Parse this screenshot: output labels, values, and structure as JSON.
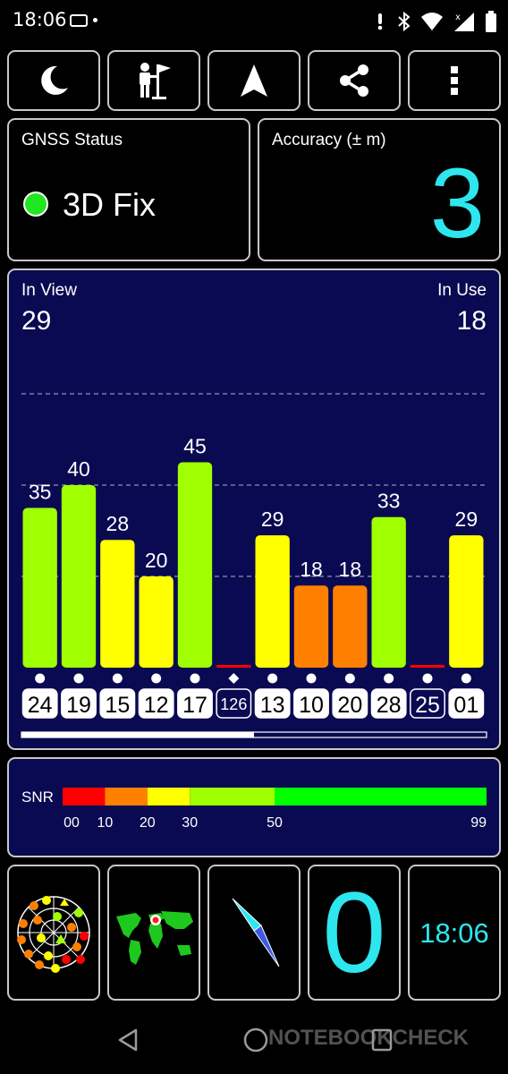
{
  "status_bar": {
    "time": "18:06",
    "icons": [
      "battery-saver-icon",
      "notification-dot-icon",
      "alarm-icon",
      "bluetooth-icon",
      "wifi-icon",
      "cell-signal-icon",
      "battery-icon"
    ]
  },
  "toolbar": {
    "buttons": [
      {
        "icon": "moon-icon"
      },
      {
        "icon": "person-flag-icon"
      },
      {
        "icon": "navigation-arrow-icon"
      },
      {
        "icon": "share-icon"
      },
      {
        "icon": "more-vert-icon"
      }
    ]
  },
  "gnss": {
    "label": "GNSS Status",
    "fix": "3D Fix",
    "fix_color": "#22e622"
  },
  "accuracy": {
    "label": "Accuracy (± m)",
    "value": "3",
    "value_color": "#2ee6ee"
  },
  "sky": {
    "in_view_label": "In View",
    "in_view": "29",
    "in_use_label": "In Use",
    "in_use": "18",
    "background": "#0a0a52"
  },
  "chart_data": {
    "type": "bar",
    "categories": [
      "24",
      "19",
      "15",
      "12",
      "17",
      "126",
      "13",
      "10",
      "20",
      "28",
      "25",
      "01"
    ],
    "values": [
      35,
      40,
      28,
      20,
      45,
      0,
      29,
      18,
      18,
      33,
      0,
      29
    ],
    "value_labels": [
      "35",
      "40",
      "28",
      "20",
      "45",
      "",
      "29",
      "18",
      "18",
      "33",
      "",
      "29"
    ],
    "in_use": [
      true,
      true,
      true,
      true,
      true,
      false,
      true,
      true,
      true,
      true,
      false,
      true
    ],
    "markers": [
      "dot",
      "dot",
      "dot",
      "dot",
      "dot",
      "diamond",
      "dot",
      "dot",
      "dot",
      "dot",
      "dot",
      "dot"
    ],
    "ylim": [
      0,
      60
    ],
    "grid_lines": [
      20,
      40,
      60
    ],
    "scroll_fraction": 0.5
  },
  "snr": {
    "label": "SNR",
    "segments": [
      {
        "from": 0,
        "to": 10,
        "color": "#ff0000"
      },
      {
        "from": 10,
        "to": 20,
        "color": "#ff8000"
      },
      {
        "from": 20,
        "to": 30,
        "color": "#ffff00"
      },
      {
        "from": 30,
        "to": 50,
        "color": "#a0ff00"
      },
      {
        "from": 50,
        "to": 99,
        "color": "#00ff00"
      }
    ],
    "ticks": [
      "00",
      "10",
      "20",
      "30",
      "50",
      "99"
    ],
    "tick_values": [
      0,
      10,
      20,
      30,
      50,
      99
    ]
  },
  "bottom": {
    "tiles": [
      {
        "icon": "sky-plot-icon"
      },
      {
        "icon": "world-map-icon"
      },
      {
        "icon": "compass-icon"
      },
      {
        "value": "0"
      },
      {
        "time": "18:06"
      }
    ]
  },
  "navbar": {
    "watermark": "NOTEBOOKCHECK",
    "icons": [
      "back-icon",
      "home-icon",
      "recents-icon"
    ]
  }
}
